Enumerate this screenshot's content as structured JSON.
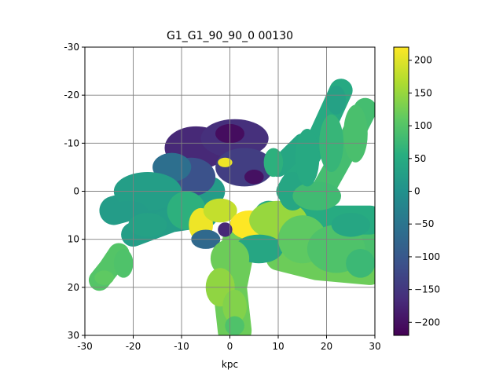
{
  "chart_data": {
    "type": "heatmap",
    "title": "G1_G1_90_90_0   00130",
    "xlabel": "kpc",
    "ylabel": "",
    "xlim": [
      -30,
      30
    ],
    "ylim": [
      -30,
      30
    ],
    "y_axis_inverted": true,
    "grid": true,
    "x_ticks": [
      "-30",
      "-20",
      "-10",
      "0",
      "10",
      "20",
      "30"
    ],
    "y_ticks": [
      "-30",
      "-20",
      "-10",
      "0",
      "10",
      "20",
      "30"
    ],
    "colorbar": {
      "colormap": "viridis",
      "range": [
        -220,
        220
      ],
      "ticks": [
        "-200",
        "-150",
        "-100",
        "-50",
        "0",
        "50",
        "100",
        "150",
        "200"
      ]
    },
    "regions": [
      {
        "x": -7,
        "y": -9,
        "rx": 6.5,
        "ry": 4.5,
        "value": -170
      },
      {
        "x": 1,
        "y": -11,
        "rx": 7,
        "ry": 4,
        "value": -160
      },
      {
        "x": 3,
        "y": -5,
        "rx": 6,
        "ry": 4,
        "value": -140
      },
      {
        "x": -8,
        "y": -3,
        "rx": 5,
        "ry": 4,
        "value": -110
      },
      {
        "x": 5,
        "y": -3,
        "rx": 2,
        "ry": 1.5,
        "value": -200
      },
      {
        "x": 0,
        "y": -12,
        "rx": 3,
        "ry": 2,
        "value": -205
      },
      {
        "x": -12,
        "y": -5,
        "rx": 4,
        "ry": 3,
        "value": -60
      },
      {
        "x": -17,
        "y": 0,
        "rx": 7,
        "ry": 4,
        "value": 25
      },
      {
        "x": -21,
        "y": 4,
        "rx": 4,
        "ry": 2,
        "value": 20
      },
      {
        "x": -17,
        "y": 7,
        "rx": 4,
        "ry": 2.5,
        "value": 30
      },
      {
        "x": -9,
        "y": 4,
        "rx": 4,
        "ry": 4,
        "value": 60
      },
      {
        "x": -6,
        "y": 7,
        "rx": 2.5,
        "ry": 3.5,
        "value": 210
      },
      {
        "x": -2,
        "y": 4,
        "rx": 3.5,
        "ry": 2.5,
        "value": 180
      },
      {
        "x": 4,
        "y": 7,
        "rx": 4,
        "ry": 3,
        "value": 220
      },
      {
        "x": 10,
        "y": 6,
        "rx": 6,
        "ry": 4,
        "value": 150
      },
      {
        "x": -1,
        "y": -6,
        "rx": 1.5,
        "ry": 1,
        "value": 210
      },
      {
        "x": -1,
        "y": 8,
        "rx": 1.5,
        "ry": 1.5,
        "value": -170
      },
      {
        "x": -5,
        "y": 10,
        "rx": 3,
        "ry": 2,
        "value": -70
      },
      {
        "x": 6,
        "y": 12,
        "rx": 5,
        "ry": 3,
        "value": 40
      },
      {
        "x": 0,
        "y": 14,
        "rx": 4,
        "ry": 4,
        "value": 120
      },
      {
        "x": -2,
        "y": 20,
        "rx": 3,
        "ry": 4,
        "value": 145
      },
      {
        "x": 1,
        "y": 24,
        "rx": 2.5,
        "ry": 3.5,
        "value": 135
      },
      {
        "x": 1,
        "y": 28,
        "rx": 2,
        "ry": 2,
        "value": 95
      },
      {
        "x": 15,
        "y": 10,
        "rx": 5,
        "ry": 5,
        "value": 110
      },
      {
        "x": 22,
        "y": 12,
        "rx": 6,
        "ry": 5,
        "value": 95
      },
      {
        "x": 27,
        "y": 15,
        "rx": 3,
        "ry": 3,
        "value": 75
      },
      {
        "x": 25,
        "y": 7,
        "rx": 4,
        "ry": 2.5,
        "value": 40
      },
      {
        "x": 13,
        "y": 0,
        "rx": 3,
        "ry": 4,
        "value": 40
      },
      {
        "x": 9,
        "y": -6,
        "rx": 2,
        "ry": 3,
        "value": 60
      },
      {
        "x": 18,
        "y": 1,
        "rx": 5,
        "ry": 3,
        "value": 80
      },
      {
        "x": 16,
        "y": -7,
        "rx": 2.5,
        "ry": 6,
        "value": 45
      },
      {
        "x": 21,
        "y": -10,
        "rx": 2.5,
        "ry": 6,
        "value": 70
      },
      {
        "x": 26,
        "y": -12,
        "rx": 2.5,
        "ry": 6,
        "value": 90
      },
      {
        "x": 22,
        "y": -19,
        "rx": 2,
        "ry": 3,
        "value": 30
      },
      {
        "x": -22,
        "y": 15,
        "rx": 2,
        "ry": 3,
        "value": 95
      },
      {
        "x": -26,
        "y": 18,
        "rx": 2,
        "ry": 1.5,
        "value": 110
      }
    ],
    "streams": [
      {
        "points": [
          [
            -27,
            18.5
          ],
          [
            -25,
            16
          ],
          [
            -23,
            13
          ]
        ],
        "width": 2.2,
        "value": 100
      },
      {
        "points": [
          [
            -24,
            4
          ],
          [
            -13,
            1
          ],
          [
            -4,
            0
          ]
        ],
        "width": 3,
        "value": 20
      },
      {
        "points": [
          [
            -20,
            9
          ],
          [
            -12,
            6
          ],
          [
            -5,
            5
          ]
        ],
        "width": 2.5,
        "value": 25
      },
      {
        "points": [
          [
            12,
            0
          ],
          [
            18,
            -10
          ],
          [
            23,
            -21
          ]
        ],
        "width": 2.4,
        "value": 45
      },
      {
        "points": [
          [
            18,
            2
          ],
          [
            23,
            -7
          ],
          [
            28,
            -17
          ]
        ],
        "width": 2.4,
        "value": 85
      },
      {
        "points": [
          [
            10,
            -5
          ],
          [
            15,
            -10
          ]
        ],
        "width": 2,
        "value": 40
      },
      {
        "points": [
          [
            2,
            10
          ],
          [
            0,
            20
          ],
          [
            1,
            29
          ]
        ],
        "width": 3.5,
        "value": 120
      },
      {
        "points": [
          [
            8,
            8
          ],
          [
            18,
            12
          ],
          [
            29,
            13
          ]
        ],
        "width": 4.5,
        "value": 90
      },
      {
        "points": [
          [
            8,
            5
          ],
          [
            18,
            6
          ],
          [
            29,
            6
          ]
        ],
        "width": 3,
        "value": 50
      },
      {
        "points": [
          [
            10,
            14
          ],
          [
            18,
            16
          ],
          [
            29,
            17
          ]
        ],
        "width": 2.5,
        "value": 120
      }
    ]
  }
}
